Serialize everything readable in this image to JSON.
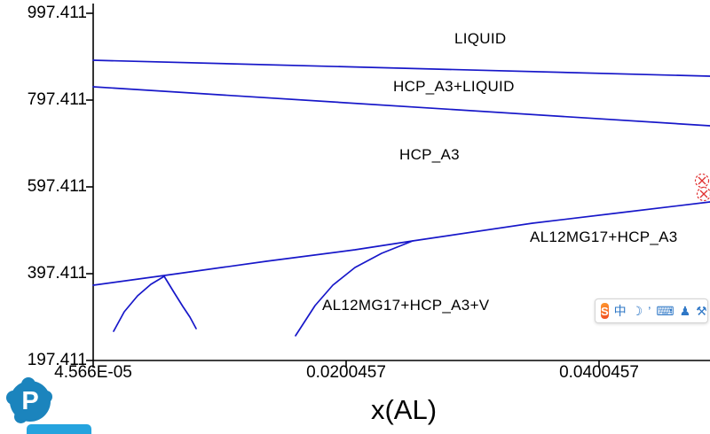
{
  "chart_data": {
    "type": "line",
    "title": "",
    "xlabel": "x(AL)",
    "ylabel": "",
    "x_tick_labels": [
      "4.566E-05",
      "0.0200457",
      "0.0400457"
    ],
    "x_tick_values": [
      4.566e-05,
      0.0200457,
      0.0400457
    ],
    "y_tick_labels": [
      "997.411",
      "797.411",
      "597.411",
      "397.411",
      "197.411"
    ],
    "y_tick_values": [
      997.411,
      797.411,
      597.411,
      397.411,
      197.411
    ],
    "xlim": [
      4.566e-05,
      0.048816
    ],
    "ylim": [
      197.411,
      997.411
    ],
    "grid": false,
    "legend": "none",
    "line_color": "#1717c9",
    "axis_color": "#000000",
    "marker_color": "#e03030",
    "region_labels": [
      "LIQUID",
      "HCP_A3+LIQUID",
      "HCP_A3",
      "AL12MG17+HCP_A3",
      "AL12MG17+HCP_A3+V"
    ],
    "series": [
      {
        "name": "liquidus-boundary",
        "points": [
          [
            4.57e-05,
            889.2
          ],
          [
            0.048816,
            852.5
          ]
        ]
      },
      {
        "name": "hcp-liquid-lower-boundary",
        "points": [
          [
            4.57e-05,
            828.0
          ],
          [
            0.048816,
            738.2
          ]
        ]
      },
      {
        "name": "solvus-main-boundary",
        "points": [
          [
            4.57e-05,
            370.9
          ],
          [
            0.0067,
            397.4
          ],
          [
            0.013729,
            426.0
          ],
          [
            0.020747,
            452.5
          ],
          [
            0.025308,
            472.9
          ],
          [
            0.034782,
            513.7
          ],
          [
            0.041799,
            538.2
          ],
          [
            0.048816,
            562.7
          ]
        ]
      },
      {
        "name": "dome-left-branch",
        "points": [
          [
            0.00166,
            264.8
          ],
          [
            0.002502,
            309.7
          ],
          [
            0.003554,
            346.4
          ],
          [
            0.004607,
            372.9
          ],
          [
            0.00566,
            391.3
          ]
        ]
      },
      {
        "name": "dome-right-branch",
        "points": [
          [
            0.00566,
            391.3
          ],
          [
            0.006432,
            354.6
          ],
          [
            0.007133,
            321.9
          ],
          [
            0.007695,
            297.4
          ],
          [
            0.008186,
            270.9
          ]
        ]
      },
      {
        "name": "three-phase-lower-boundary",
        "points": [
          [
            0.016045,
            254.6
          ],
          [
            0.017589,
            323.9
          ],
          [
            0.018993,
            370.9
          ],
          [
            0.020747,
            411.7
          ],
          [
            0.022852,
            444.4
          ],
          [
            0.025308,
            472.9
          ]
        ]
      }
    ],
    "markers": [
      {
        "name": "invariant-point-marker",
        "x": 0.048184,
        "t": 611.7
      },
      {
        "name": "invariant-point-marker",
        "x": 0.048325,
        "t": 581.1
      }
    ]
  },
  "overlays": {
    "ime": {
      "logo": "S",
      "icons": [
        "中",
        "☽",
        "’",
        "⌨",
        "♟",
        "⚒"
      ]
    },
    "pandat": {
      "letter": "P"
    }
  }
}
